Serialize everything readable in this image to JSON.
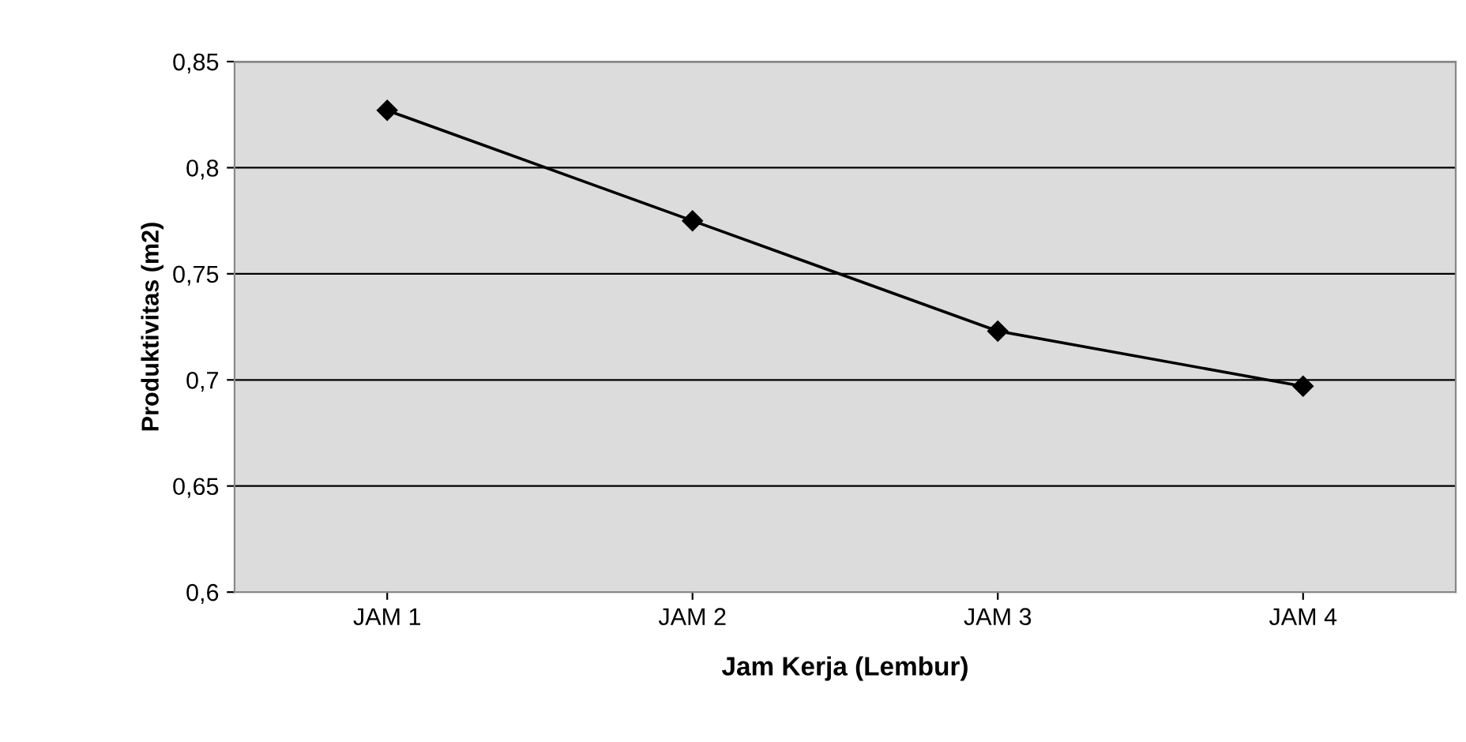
{
  "chart_data": {
    "type": "line",
    "xlabel": "Jam Kerja (Lembur)",
    "ylabel": "Produktivitas (m2)",
    "categories": [
      "JAM 1",
      "JAM 2",
      "JAM 3",
      "JAM 4"
    ],
    "series": [
      {
        "color": "#000000",
        "values": [
          0.827,
          0.775,
          0.723,
          0.697
        ]
      }
    ],
    "ylim": [
      0.6,
      0.85
    ],
    "yticks": [
      {
        "value": 0.6,
        "label": "0,6"
      },
      {
        "value": 0.65,
        "label": "0,65"
      },
      {
        "value": 0.7,
        "label": "0,7"
      },
      {
        "value": 0.75,
        "label": "0,75"
      },
      {
        "value": 0.8,
        "label": "0,8"
      },
      {
        "value": 0.85,
        "label": "0,85"
      }
    ],
    "grid": "y",
    "marker": "diamond",
    "line_style": "solid",
    "legend": false
  }
}
